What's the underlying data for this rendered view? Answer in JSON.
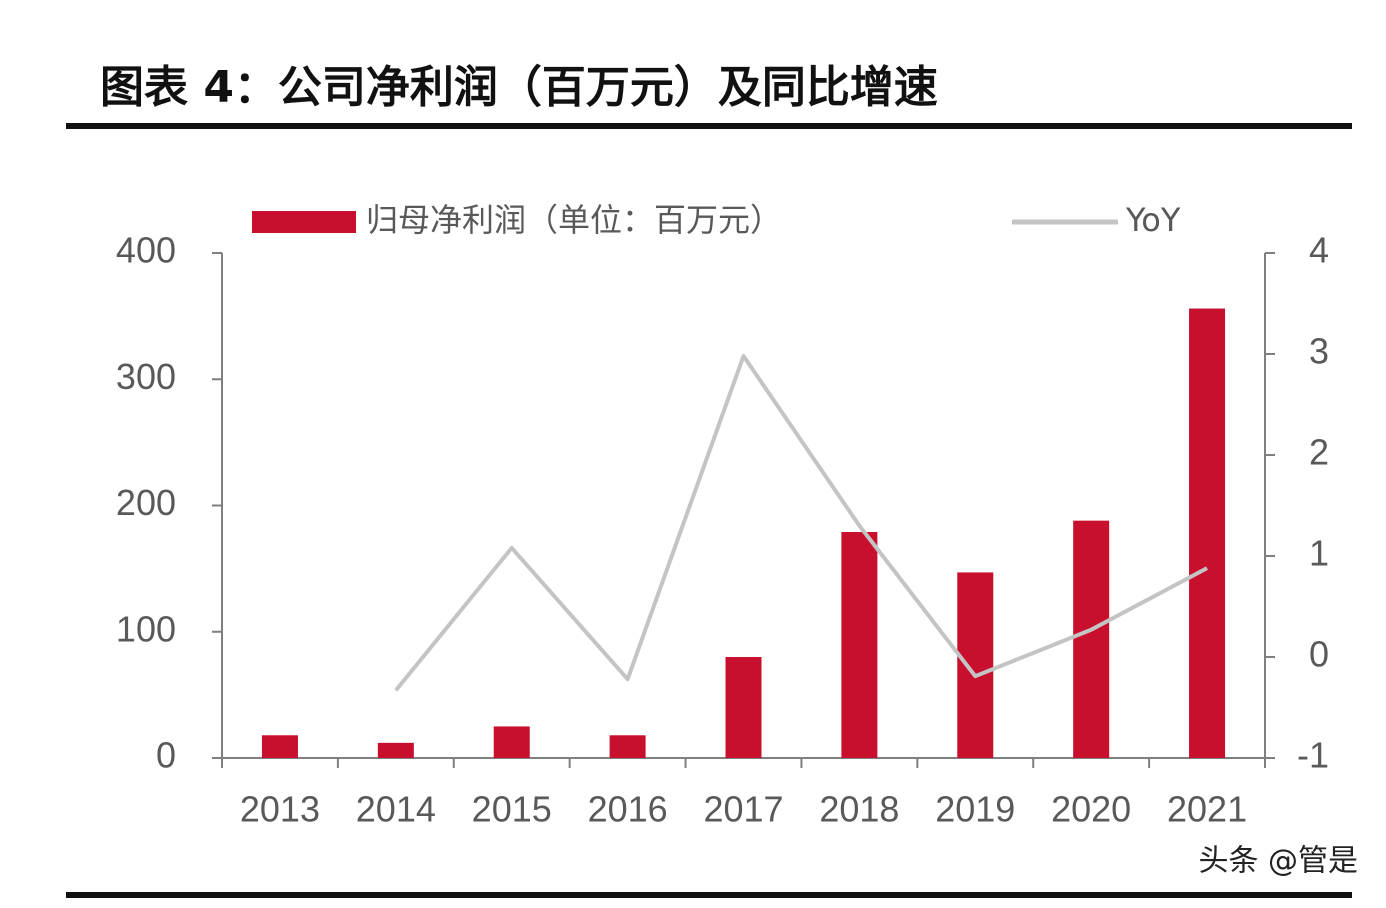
{
  "chart_data": {
    "type": "bar_line",
    "title": "图表 4：公司净利润（百万元）及同比增速",
    "categories": [
      "2013",
      "2014",
      "2015",
      "2016",
      "2017",
      "2018",
      "2019",
      "2020",
      "2021"
    ],
    "series": [
      {
        "name": "归母净利润（单位：百万元）",
        "type": "bar",
        "color": "#c8102e",
        "values": [
          18,
          12,
          25,
          18,
          80,
          179,
          147,
          188,
          356
        ]
      },
      {
        "name": "YoY",
        "type": "line",
        "axis": "y2",
        "color": "#c4c4c4",
        "values": [
          null,
          -0.33,
          1.08,
          -0.22,
          2.98,
          1.3,
          -0.19,
          0.27,
          0.88
        ]
      }
    ],
    "ylim": [
      0,
      400
    ],
    "yticks": [
      0,
      100,
      200,
      300,
      400
    ],
    "y2lim": [
      -1,
      4
    ],
    "y2ticks": [
      -1,
      0,
      1,
      2,
      3,
      4
    ],
    "watermark": "头条 @管是"
  }
}
